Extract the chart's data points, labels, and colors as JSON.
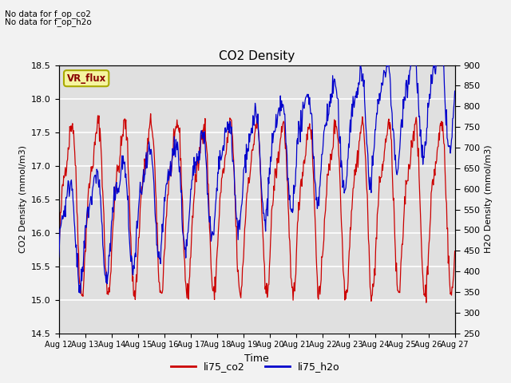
{
  "title": "CO2 Density",
  "xlabel": "Time",
  "ylabel_left": "CO2 Density (mmol/m3)",
  "ylabel_right": "H2O Density (mmol/m3)",
  "ylim_left": [
    14.5,
    18.5
  ],
  "ylim_right": [
    250,
    900
  ],
  "text_no_data_1": "No data for f_op_co2",
  "text_no_data_2": "No data for f_op_h2o",
  "legend_box_text": "VR_flux",
  "legend_entries": [
    "li75_co2",
    "li75_h2o"
  ],
  "color_co2": "#cc0000",
  "color_h2o": "#0000cc",
  "bg_color": "#e0e0e0",
  "grid_color": "#ffffff",
  "fig_bg": "#f2f2f2",
  "tick_labels": [
    "Aug 12",
    "Aug 13",
    "Aug 14",
    "Aug 15",
    "Aug 16",
    "Aug 17",
    "Aug 18",
    "Aug 19",
    "Aug 20",
    "Aug 21",
    "Aug 22",
    "Aug 23",
    "Aug 24",
    "Aug 25",
    "Aug 26",
    "Aug 27"
  ]
}
